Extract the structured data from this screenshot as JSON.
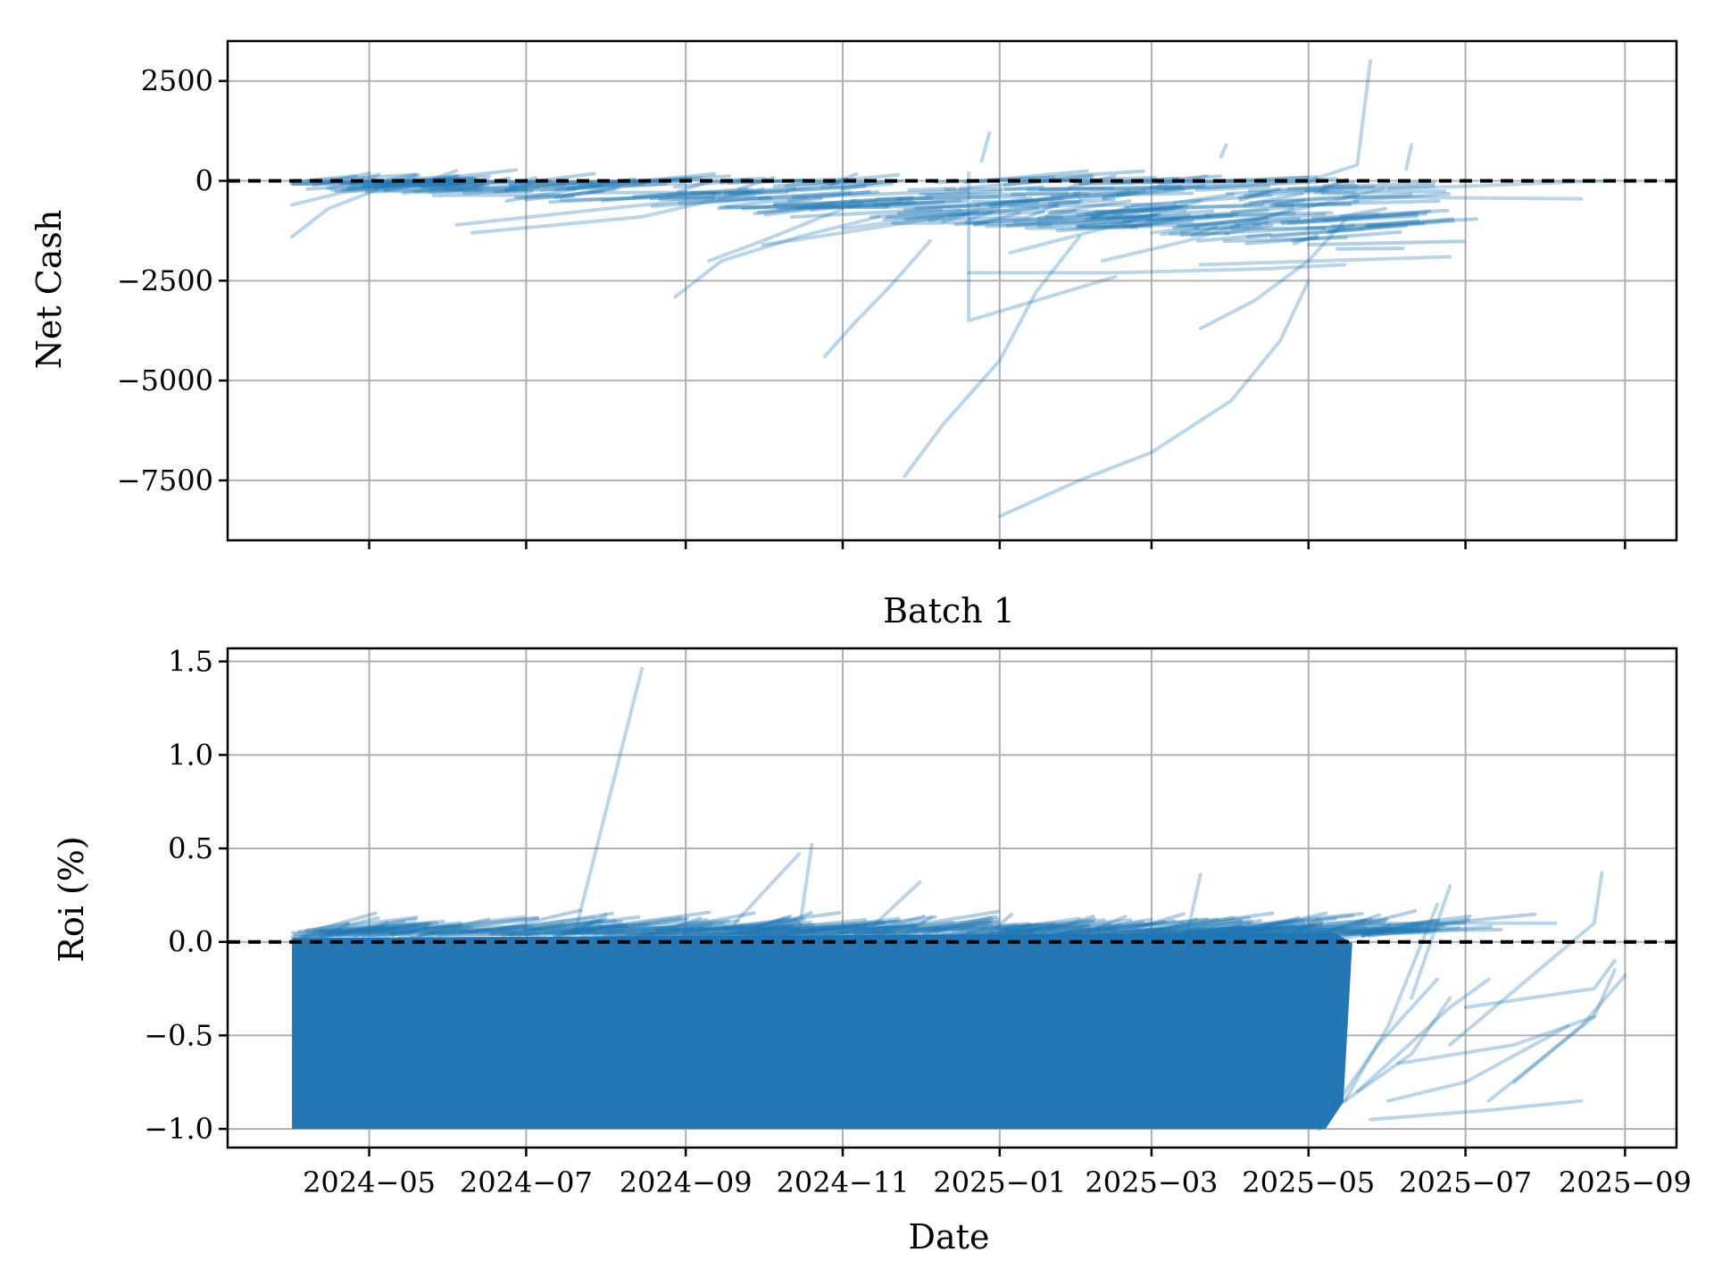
{
  "chart_data": [
    {
      "type": "line",
      "title": "",
      "xlabel": "",
      "ylabel": "Net Cash",
      "ylim": [
        -9000,
        3500
      ],
      "yticks": [
        2500,
        0,
        -2500,
        -5000,
        -7500
      ],
      "ytick_labels": [
        "2500",
        "0",
        "−2500",
        "−5000",
        "−7500"
      ],
      "xlim": [
        "2024-03-07",
        "2025-09-21"
      ],
      "xticks": [
        "2024-05-01",
        "2024-07-01",
        "2024-09-01",
        "2024-11-01",
        "2025-01-01",
        "2025-03-01",
        "2025-05-01",
        "2025-07-01",
        "2025-09-01"
      ],
      "grid": true,
      "reference_line": {
        "y": 0,
        "style": "dashed",
        "color": "#000000"
      },
      "series_color": "#1f77b4",
      "series_alpha": 0.3,
      "series": [
        {
          "x": [
            "2024-04-01",
            "2024-04-15",
            "2024-05-01",
            "2024-05-10"
          ],
          "y": [
            -1400,
            -700,
            -300,
            -50
          ]
        },
        {
          "x": [
            "2024-06-04",
            "2024-08-01",
            "2024-10-01",
            "2024-11-20"
          ],
          "y": [
            -1100,
            -700,
            -300,
            -80
          ]
        },
        {
          "x": [
            "2024-08-28",
            "2024-09-15",
            "2024-10-15",
            "2024-11-15"
          ],
          "y": [
            -2900,
            -2000,
            -1400,
            -900
          ]
        },
        {
          "x": [
            "2024-10-25",
            "2024-11-05",
            "2024-11-20",
            "2024-12-05"
          ],
          "y": [
            -4400,
            -3600,
            -2600,
            -1500
          ]
        },
        {
          "x": [
            "2024-11-25",
            "2024-12-10",
            "2025-01-01",
            "2025-01-15",
            "2025-02-01"
          ],
          "y": [
            -7400,
            -6100,
            -4500,
            -2800,
            -1400
          ]
        },
        {
          "x": [
            "2025-01-01",
            "2025-02-01",
            "2025-03-01",
            "2025-04-01",
            "2025-04-20",
            "2025-05-01"
          ],
          "y": [
            -8400,
            -7500,
            -6800,
            -5500,
            -4000,
            -2500
          ]
        },
        {
          "x": [
            "2025-03-20",
            "2025-04-10",
            "2025-05-01",
            "2025-05-15"
          ],
          "y": [
            -3700,
            -3000,
            -2000,
            -1000
          ]
        },
        {
          "x": [
            "2025-05-01",
            "2025-05-20",
            "2025-05-25"
          ],
          "y": [
            0,
            400,
            3000
          ]
        },
        {
          "x": [
            "2024-12-20",
            "2024-12-20",
            "2025-01-15",
            "2025-02-15"
          ],
          "y": [
            200,
            -3500,
            -3000,
            -2400
          ]
        },
        {
          "x": [
            "2024-12-20",
            "2025-02-15",
            "2025-04-15",
            "2025-05-15"
          ],
          "y": [
            -2300,
            -2300,
            -2200,
            -2100
          ]
        },
        {
          "x": [
            "2025-03-20",
            "2025-06-25"
          ],
          "y": [
            -2100,
            -1900
          ]
        },
        {
          "x": [
            "2025-05-15",
            "2025-08-15"
          ],
          "y": [
            -400,
            -450
          ]
        },
        {
          "x": [
            "2025-06-01",
            "2025-07-15",
            "2025-08-25"
          ],
          "y": [
            -200,
            -100,
            0
          ]
        },
        {
          "x": [
            "2024-04-01",
            "2024-04-20",
            "2024-05-20"
          ],
          "y": [
            -600,
            -300,
            0
          ]
        },
        {
          "x": [
            "2024-06-10",
            "2024-08-15",
            "2024-10-01"
          ],
          "y": [
            -1300,
            -900,
            -200
          ]
        },
        {
          "x": [
            "2024-09-10",
            "2024-10-01",
            "2024-11-01"
          ],
          "y": [
            -2000,
            -1500,
            -700
          ]
        },
        {
          "x": [
            "2024-10-01",
            "2024-11-01",
            "2024-12-10"
          ],
          "y": [
            -1600,
            -1300,
            -900
          ]
        },
        {
          "x": [
            "2024-11-01",
            "2024-12-15",
            "2025-02-01"
          ],
          "y": [
            -1200,
            -800,
            -300
          ]
        },
        {
          "x": [
            "2025-01-05",
            "2025-02-10",
            "2025-03-20"
          ],
          "y": [
            -1800,
            -1200,
            -500
          ]
        },
        {
          "x": [
            "2025-02-10",
            "2025-03-15",
            "2025-04-25"
          ],
          "y": [
            -2000,
            -1500,
            -700
          ]
        },
        {
          "x": [
            "2025-03-01",
            "2025-04-15",
            "2025-05-30"
          ],
          "y": [
            -1300,
            -900,
            -200
          ]
        },
        {
          "x": [
            "2024-12-25",
            "2024-12-28"
          ],
          "y": [
            500,
            1200
          ]
        },
        {
          "x": [
            "2025-03-28",
            "2025-03-30"
          ],
          "y": [
            600,
            900
          ]
        },
        {
          "x": [
            "2025-06-08",
            "2025-06-10"
          ],
          "y": [
            300,
            900
          ]
        }
      ]
    },
    {
      "type": "line",
      "title": "Batch 1",
      "xlabel": "Date",
      "ylabel": "Roi (%)",
      "ylim": [
        -1.1,
        1.57
      ],
      "yticks": [
        1.5,
        1.0,
        0.5,
        0.0,
        -0.5,
        -1.0
      ],
      "ytick_labels": [
        "1.5",
        "1.0",
        "0.5",
        "0.0",
        "−0.5",
        "−1.0"
      ],
      "xlim": [
        "2024-03-07",
        "2025-09-21"
      ],
      "xticks": [
        "2024-05-01",
        "2024-07-01",
        "2024-09-01",
        "2024-11-01",
        "2025-01-01",
        "2025-03-01",
        "2025-05-01",
        "2025-07-01",
        "2025-09-01"
      ],
      "xtick_labels": [
        "2024−05",
        "2024−07",
        "2024−09",
        "2024−11",
        "2025−01",
        "2025−03",
        "2025−05",
        "2025−07",
        "2025−09"
      ],
      "grid": true,
      "reference_line": {
        "y": 0,
        "style": "dashed",
        "color": "#000000"
      },
      "series_color": "#1f77b4",
      "series_alpha": 0.3,
      "dense_band": {
        "x_start": "2024-04-01",
        "x_end": "2025-05-18",
        "y_low": -1.0,
        "y_high": 0.05
      },
      "series": [
        {
          "x": [
            "2024-07-20",
            "2024-08-15"
          ],
          "y": [
            0.05,
            1.46
          ]
        },
        {
          "x": [
            "2024-09-20",
            "2024-10-15"
          ],
          "y": [
            0.1,
            0.47
          ]
        },
        {
          "x": [
            "2024-10-15",
            "2024-10-20"
          ],
          "y": [
            0.05,
            0.52
          ]
        },
        {
          "x": [
            "2024-11-10",
            "2024-12-01"
          ],
          "y": [
            0.05,
            0.32
          ]
        },
        {
          "x": [
            "2025-03-15",
            "2025-03-20"
          ],
          "y": [
            0.05,
            0.36
          ]
        },
        {
          "x": [
            "2025-05-05",
            "2025-05-28",
            "2025-06-20"
          ],
          "y": [
            -1.0,
            -0.55,
            -0.2
          ]
        },
        {
          "x": [
            "2025-05-10",
            "2025-06-10",
            "2025-06-25"
          ],
          "y": [
            -0.9,
            -0.6,
            -0.3
          ]
        },
        {
          "x": [
            "2025-05-15",
            "2025-06-01",
            "2025-06-20"
          ],
          "y": [
            -0.85,
            -0.45,
            0.2
          ]
        },
        {
          "x": [
            "2025-05-20",
            "2025-06-20",
            "2025-08-05"
          ],
          "y": [
            0.1,
            0.1,
            0.1
          ]
        },
        {
          "x": [
            "2025-05-20",
            "2025-06-25",
            "2025-07-10"
          ],
          "y": [
            -0.8,
            -0.35,
            -0.2
          ]
        },
        {
          "x": [
            "2025-05-25",
            "2025-07-10",
            "2025-08-15"
          ],
          "y": [
            -0.95,
            -0.9,
            -0.85
          ]
        },
        {
          "x": [
            "2025-06-01",
            "2025-07-01",
            "2025-08-10"
          ],
          "y": [
            -0.85,
            -0.75,
            -0.45
          ]
        },
        {
          "x": [
            "2025-06-05",
            "2025-07-20",
            "2025-08-20"
          ],
          "y": [
            -0.65,
            -0.55,
            -0.4
          ]
        },
        {
          "x": [
            "2025-06-10",
            "2025-06-25"
          ],
          "y": [
            -0.3,
            0.3
          ]
        },
        {
          "x": [
            "2025-06-25",
            "2025-08-20",
            "2025-08-23"
          ],
          "y": [
            -0.55,
            0.1,
            0.37
          ]
        },
        {
          "x": [
            "2025-07-01",
            "2025-08-20",
            "2025-08-28"
          ],
          "y": [
            -0.35,
            -0.25,
            -0.1
          ]
        },
        {
          "x": [
            "2025-07-10",
            "2025-08-20",
            "2025-08-28"
          ],
          "y": [
            -0.85,
            -0.4,
            -0.15
          ]
        },
        {
          "x": [
            "2025-07-20",
            "2025-08-15",
            "2025-09-01"
          ],
          "y": [
            -0.75,
            -0.45,
            -0.18
          ]
        }
      ]
    }
  ]
}
